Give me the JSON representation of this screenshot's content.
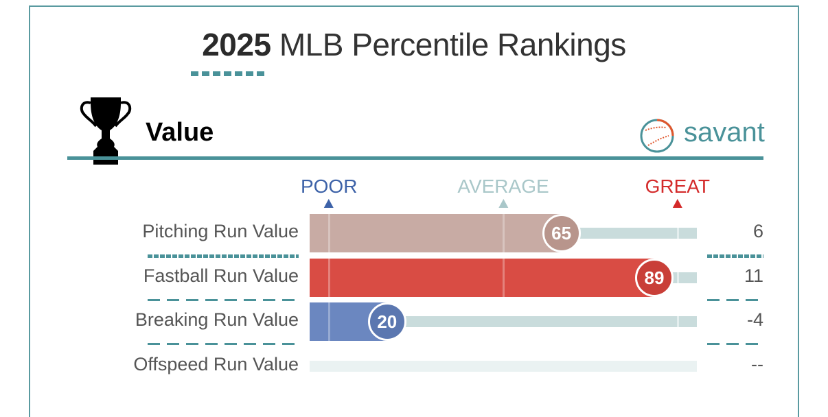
{
  "header": {
    "year": "2025",
    "title_rest": " MLB Percentile Rankings"
  },
  "section": {
    "title": "Value",
    "icon": "trophy-icon"
  },
  "brand": {
    "text": "savant",
    "icon": "baseball-logo-icon",
    "color": "#4a9299"
  },
  "scale": {
    "poor": {
      "label": "POOR",
      "percentile": 5,
      "color": "#3d62a8"
    },
    "average": {
      "label": "AVERAGE",
      "percentile": 50,
      "color": "#a9c7c9"
    },
    "great": {
      "label": "GREAT",
      "percentile": 95,
      "color": "#d42a2a"
    }
  },
  "rows": [
    {
      "label": "Pitching Run Value",
      "percentile": 65,
      "percentile_text": "65",
      "value": "6",
      "bar_color": "#c8aba4",
      "circle_color": "#b8958c"
    },
    {
      "label": "Fastball Run Value",
      "percentile": 89,
      "percentile_text": "89",
      "value": "11",
      "bar_color": "#d94c44",
      "circle_color": "#c93f38"
    },
    {
      "label": "Breaking Run Value",
      "percentile": 20,
      "percentile_text": "20",
      "value": "-4",
      "bar_color": "#6b87c0",
      "circle_color": "#5b77b0"
    },
    {
      "label": "Offspeed Run Value",
      "percentile": null,
      "percentile_text": "",
      "value": "--",
      "bar_color": "",
      "circle_color": ""
    }
  ]
}
